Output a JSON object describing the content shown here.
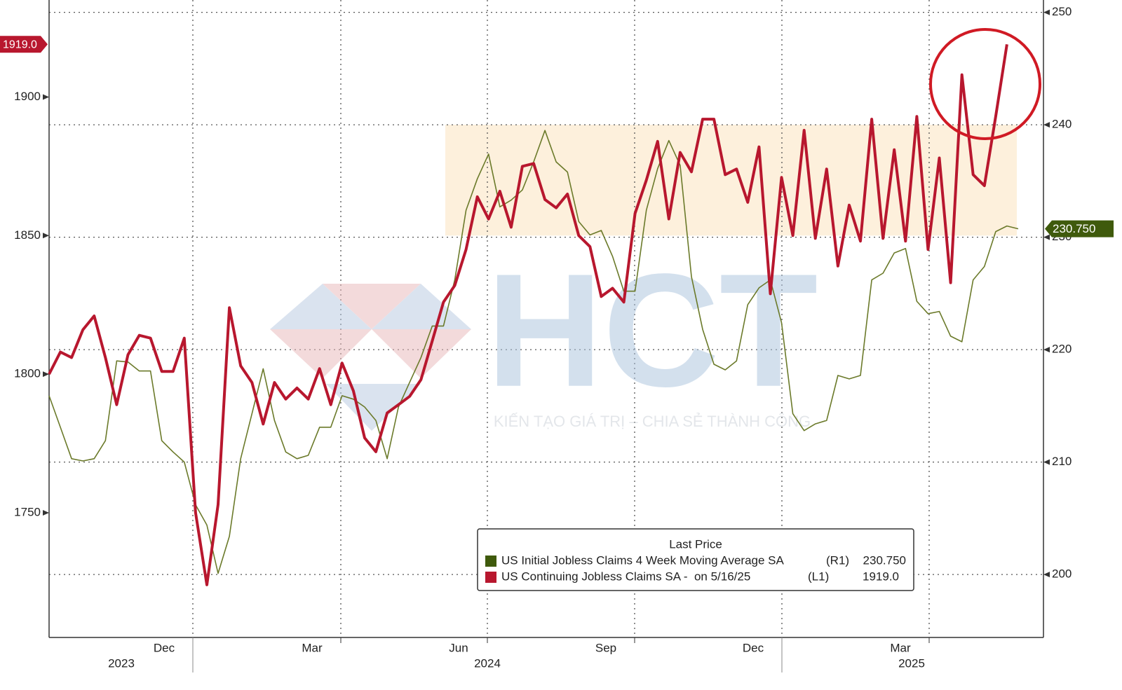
{
  "chart_data": {
    "type": "line",
    "watermark": {
      "logo": "HCT",
      "slogan": "KIẾN TẠO GIÁ TRỊ – CHIA SẺ THÀNH CÔNG"
    },
    "legend_title": "Last Price",
    "month_labels": [
      "Dec",
      "Mar",
      "Jun",
      "Sep",
      "Dec",
      "Mar"
    ],
    "year_labels": [
      "2023",
      "2024",
      "2025"
    ],
    "categories": [
      null,
      null,
      null,
      null,
      null,
      null,
      null,
      null,
      null,
      null,
      null,
      null,
      null,
      null,
      null,
      null,
      null,
      null,
      null,
      null,
      null,
      null,
      null,
      null,
      null,
      null,
      null,
      null,
      null,
      null,
      null,
      null,
      null,
      null,
      null,
      null,
      null,
      null,
      null,
      null,
      null,
      null,
      null,
      null,
      null,
      null,
      null,
      null,
      null,
      null,
      null,
      null,
      null,
      null,
      null,
      null,
      null,
      null,
      null,
      null,
      null,
      null,
      null,
      null,
      null,
      null,
      null,
      null,
      null,
      null,
      null,
      null,
      null,
      null,
      null,
      null,
      null,
      null,
      null,
      null,
      null,
      null,
      null,
      null,
      null,
      null,
      null
    ],
    "ylim": [
      1705,
      1935
    ],
    "yticks": [
      1750,
      1800,
      1850,
      1900
    ],
    "y2lim": [
      194.4,
      251.1
    ],
    "y2ticks": [
      200,
      210,
      220,
      230,
      240,
      250
    ],
    "grid": true,
    "band": {
      "ylim": [
        1850,
        1890
      ],
      "color": "#fdf0dc"
    },
    "series": [
      {
        "name": "US Initial Jobless Claims 4 Week Moving Average SA",
        "axis_label": "(R1)",
        "last_label": "230.750",
        "axis": "y2",
        "color": "#6b7a2a",
        "values": [
          215.9,
          213.1,
          210.3,
          210.1,
          210.3,
          211.9,
          219.0,
          218.9,
          218.1,
          218.1,
          211.9,
          210.9,
          210.0,
          206.2,
          204.4,
          200.1,
          203.4,
          210.3,
          214.3,
          218.3,
          213.7,
          210.9,
          210.3,
          210.6,
          213.1,
          213.1,
          215.9,
          215.6,
          214.9,
          213.7,
          210.3,
          214.9,
          217.1,
          219.3,
          222.1,
          222.1,
          226.2,
          232.4,
          235.2,
          237.4,
          232.7,
          233.3,
          234.2,
          236.7,
          239.5,
          236.7,
          235.8,
          231.4,
          230.2,
          230.6,
          228.3,
          225.2,
          225.2,
          232.4,
          236.1,
          238.6,
          236.4,
          226.5,
          221.8,
          218.7,
          218.2,
          219.0,
          224.0,
          225.5,
          226.2,
          222.4,
          214.3,
          212.8,
          213.4,
          213.7,
          217.7,
          217.4,
          217.7,
          226.2,
          226.8,
          228.6,
          229.0,
          224.3,
          223.2,
          223.4,
          221.2,
          220.7,
          226.2,
          227.4,
          230.5,
          231.0,
          230.75
        ]
      },
      {
        "name": "US Continuing Jobless Claims SA -  on 5/16/25",
        "axis_label": "(L1)",
        "last_label": "1919.0",
        "color": "#b8172e",
        "values": [
          1800,
          1808,
          1806,
          1816,
          1821,
          1806,
          1789,
          1807,
          1814,
          1813,
          1801,
          1801,
          1813,
          1750,
          1724,
          1753,
          1824,
          1803,
          1797,
          1782,
          1797,
          1791,
          1795,
          1791,
          1802,
          1789,
          1804,
          1794,
          1777,
          1772,
          1786,
          1789,
          1792,
          1798,
          1812,
          1826,
          1832,
          1845,
          1864,
          1856,
          1866,
          1853,
          1875,
          1876,
          1863,
          1860,
          1865,
          1850,
          1846,
          1828,
          1831,
          1826,
          1858,
          1870,
          1884,
          1856,
          1880,
          1873,
          1892,
          1892,
          1872,
          1874,
          1862,
          1882,
          1829,
          1871,
          1850,
          1888,
          1849,
          1874,
          1839,
          1861,
          1848,
          1892,
          1849,
          1881,
          1848,
          1893,
          1845,
          1878,
          1833,
          1908,
          1872,
          1868,
          1893,
          1919,
          null
        ]
      }
    ]
  }
}
